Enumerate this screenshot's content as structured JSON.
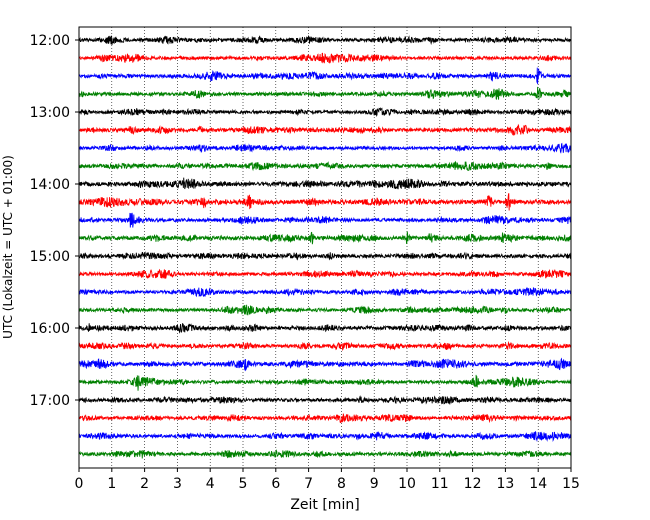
{
  "chart_data": {
    "type": "line",
    "title": "",
    "xlabel": "Zeit  [min]",
    "ylabel": "UTC (Lokalzeit = UTC + 01:00)",
    "xlim": [
      0,
      15
    ],
    "x_ticks": [
      0,
      1,
      2,
      3,
      4,
      5,
      6,
      7,
      8,
      9,
      10,
      11,
      12,
      13,
      14,
      15
    ],
    "x_tick_labels": [
      "0",
      "1",
      "2",
      "3",
      "4",
      "5",
      "6",
      "7",
      "8",
      "9",
      "10",
      "11",
      "12",
      "13",
      "14",
      "15"
    ],
    "y_tick_labels": [
      "12:00",
      "13:00",
      "14:00",
      "15:00",
      "16:00",
      "17:00"
    ],
    "x_grid": "dotted vertical lines at each minute",
    "trace_interval_min": 15,
    "color_cycle": [
      "#000000",
      "#ff0000",
      "#0000ff",
      "#008000"
    ],
    "series": [
      {
        "start": "12:00",
        "amplitude": 1.0,
        "events": []
      },
      {
        "start": "12:15",
        "amplitude": 1.0,
        "events": []
      },
      {
        "start": "12:30",
        "amplitude": 1.1,
        "events": [
          {
            "t": 14.0,
            "amp": 6.0
          }
        ]
      },
      {
        "start": "12:45",
        "amplitude": 1.0,
        "events": [
          {
            "t": 14.0,
            "amp": 5.0
          }
        ]
      },
      {
        "start": "13:00",
        "amplitude": 1.0,
        "events": []
      },
      {
        "start": "13:15",
        "amplitude": 1.1,
        "events": [
          {
            "t": 8.6,
            "amp": 2.0
          },
          {
            "t": 3.7,
            "amp": 2.0
          },
          {
            "t": 13.6,
            "amp": 1.5
          }
        ]
      },
      {
        "start": "13:30",
        "amplitude": 1.0,
        "events": []
      },
      {
        "start": "13:45",
        "amplitude": 1.1,
        "events": [
          {
            "t": 14.3,
            "amp": 2.0
          }
        ]
      },
      {
        "start": "14:00",
        "amplitude": 1.3,
        "events": [
          {
            "t": 1.9,
            "amp": 1.8
          },
          {
            "t": 3.2,
            "amp": 1.6
          }
        ]
      },
      {
        "start": "14:15",
        "amplitude": 1.3,
        "events": [
          {
            "t": 3.8,
            "amp": 1.8
          },
          {
            "t": 5.2,
            "amp": 3.5
          },
          {
            "t": 13.1,
            "amp": 4.5
          },
          {
            "t": 12.5,
            "amp": 2.0
          }
        ]
      },
      {
        "start": "14:30",
        "amplitude": 1.0,
        "events": [
          {
            "t": 1.6,
            "amp": 5.0
          }
        ]
      },
      {
        "start": "14:45",
        "amplitude": 1.2,
        "events": [
          {
            "t": 7.1,
            "amp": 2.8
          },
          {
            "t": 10.0,
            "amp": 3.0
          },
          {
            "t": 10.7,
            "amp": 2.0
          },
          {
            "t": 12.9,
            "amp": 2.0
          }
        ]
      },
      {
        "start": "15:00",
        "amplitude": 1.1,
        "events": []
      },
      {
        "start": "15:15",
        "amplitude": 1.0,
        "events": []
      },
      {
        "start": "15:30",
        "amplitude": 1.0,
        "events": []
      },
      {
        "start": "15:45",
        "amplitude": 1.0,
        "events": [
          {
            "t": 13.0,
            "amp": 1.5
          }
        ]
      },
      {
        "start": "16:00",
        "amplitude": 1.1,
        "events": [
          {
            "t": 0.3,
            "amp": 1.8
          }
        ]
      },
      {
        "start": "16:15",
        "amplitude": 1.0,
        "events": []
      },
      {
        "start": "16:30",
        "amplitude": 1.2,
        "events": [
          {
            "t": 5.1,
            "amp": 2.5
          }
        ]
      },
      {
        "start": "16:45",
        "amplitude": 1.0,
        "events": [
          {
            "t": 1.8,
            "amp": 3.0
          },
          {
            "t": 12.1,
            "amp": 3.0
          }
        ]
      },
      {
        "start": "17:00",
        "amplitude": 1.0,
        "events": []
      },
      {
        "start": "17:15",
        "amplitude": 1.0,
        "events": []
      },
      {
        "start": "17:30",
        "amplitude": 1.0,
        "events": [
          {
            "t": 8.5,
            "amp": 1.4
          }
        ]
      },
      {
        "start": "17:45",
        "amplitude": 1.0,
        "events": []
      }
    ]
  }
}
